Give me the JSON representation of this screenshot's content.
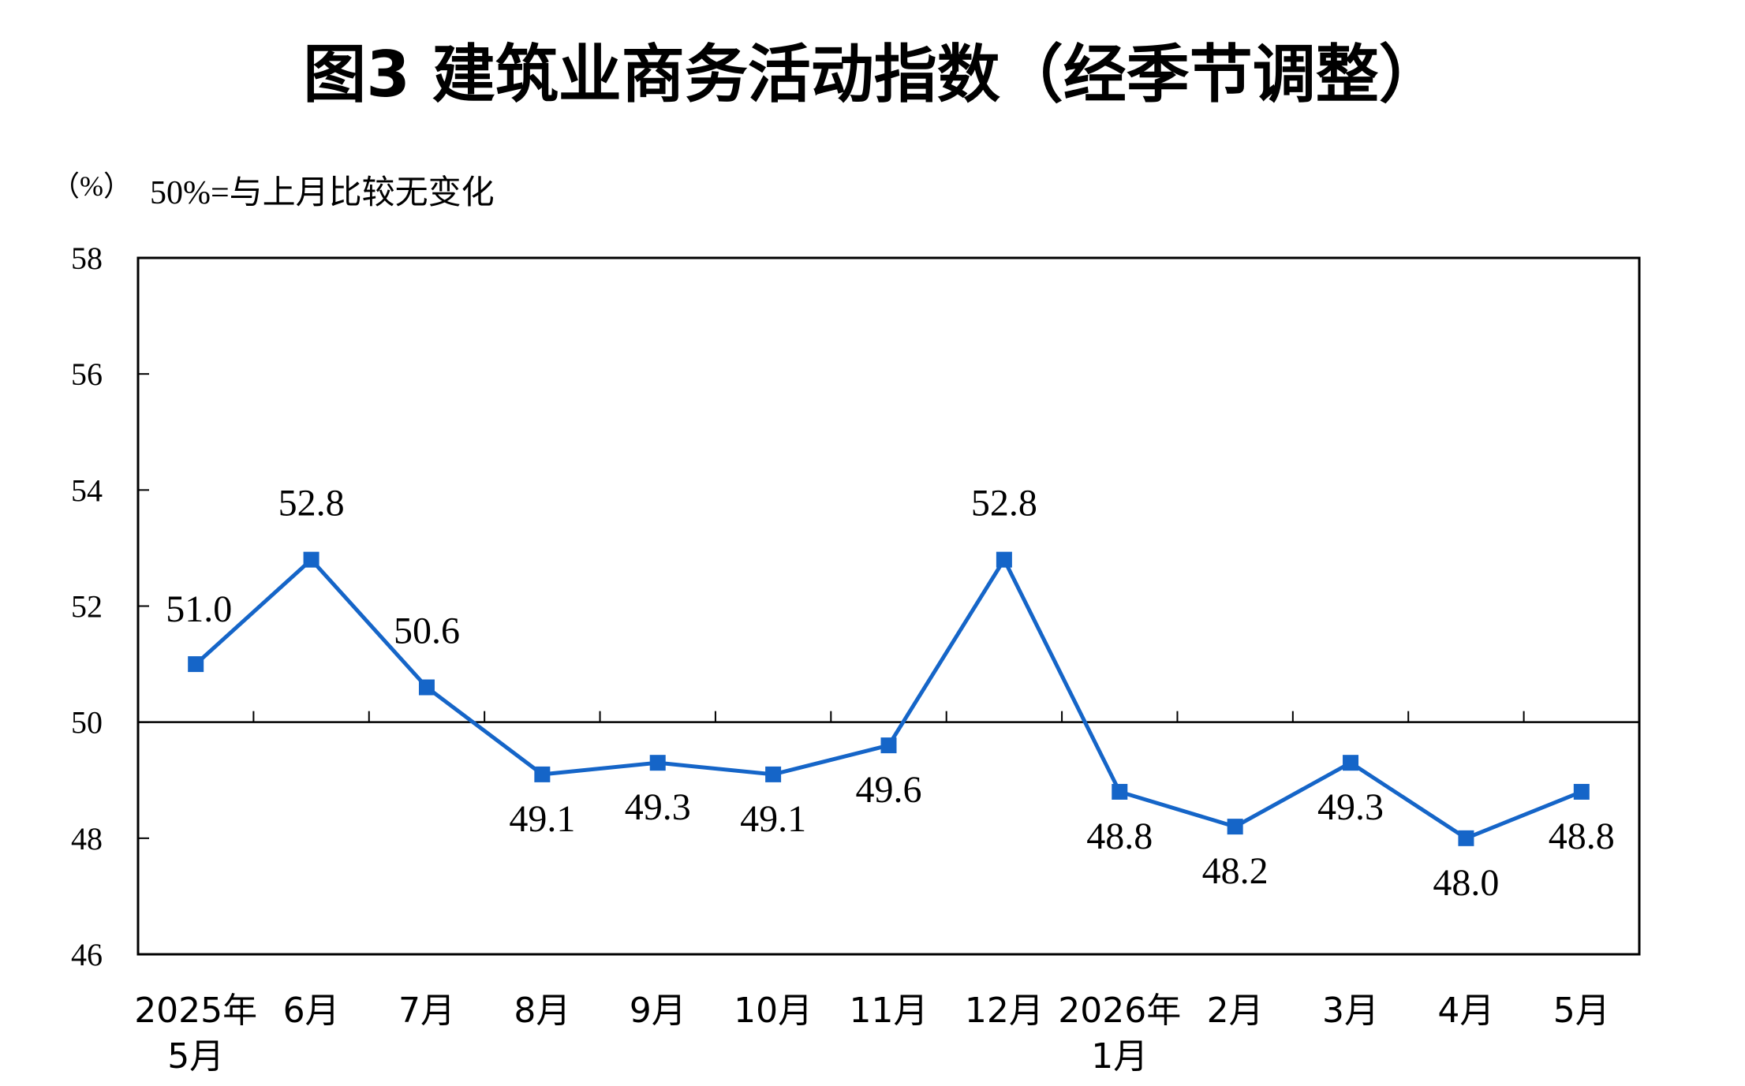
{
  "chart_data": {
    "type": "line",
    "title": "图3  建筑业商务活动指数（经季节调整）",
    "unit_label": "（%）",
    "reference_note": "50%=与上月比较无变化",
    "categories": [
      [
        "2025年",
        "5月"
      ],
      [
        "6月"
      ],
      [
        "7月"
      ],
      [
        "8月"
      ],
      [
        "9月"
      ],
      [
        "10月"
      ],
      [
        "11月"
      ],
      [
        "12月"
      ],
      [
        "2026年",
        "1月"
      ],
      [
        "2月"
      ],
      [
        "3月"
      ],
      [
        "4月"
      ],
      [
        "5月"
      ]
    ],
    "series": [
      {
        "values": [
          51.0,
          52.8,
          50.6,
          49.1,
          49.3,
          49.1,
          49.6,
          52.8,
          48.8,
          48.2,
          49.3,
          48.0,
          48.8
        ],
        "data_labels": [
          "51.0",
          "52.8",
          "50.6",
          "49.1",
          "49.3",
          "49.1",
          "49.6",
          "52.8",
          "48.8",
          "48.2",
          "49.3",
          "48.0",
          "48.8"
        ],
        "label_position": [
          "above",
          "above",
          "above",
          "below",
          "below",
          "below",
          "below",
          "above",
          "below",
          "below",
          "below",
          "below",
          "below"
        ],
        "color": "#1565C8"
      }
    ],
    "yticks": [
      "46",
      "48",
      "50",
      "52",
      "54",
      "56",
      "58"
    ],
    "ylim": [
      46,
      58
    ],
    "reference_line": 50,
    "grid": false,
    "legend": "none"
  }
}
